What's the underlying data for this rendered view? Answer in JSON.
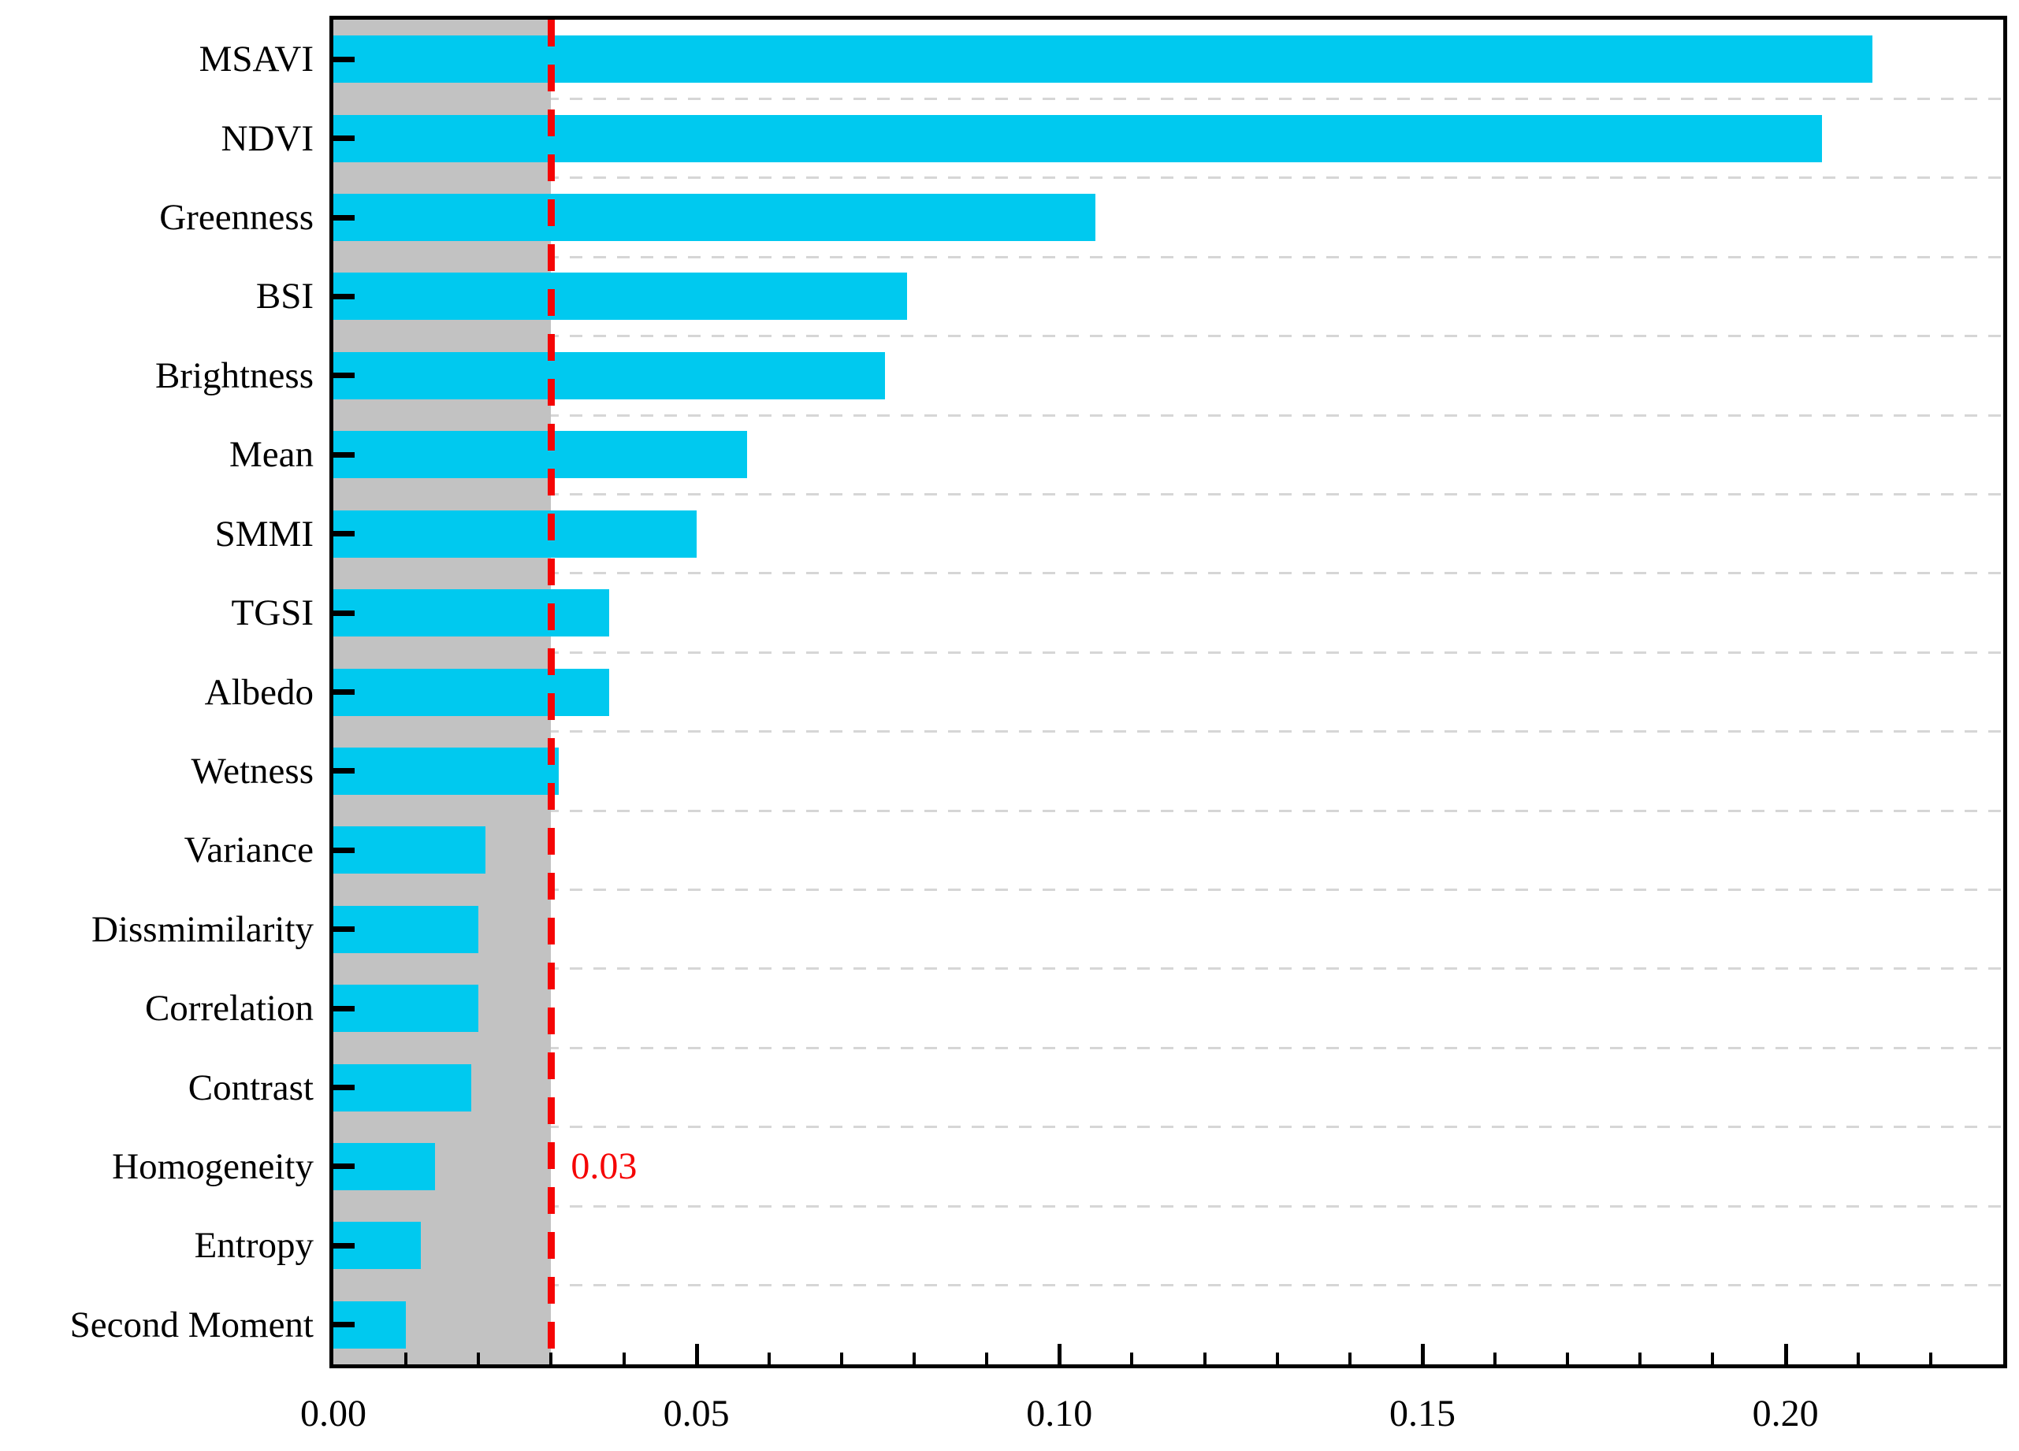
{
  "chart_data": {
    "type": "bar",
    "orientation": "horizontal",
    "title": "",
    "xlabel": "",
    "ylabel": "",
    "categories": [
      "MSAVI",
      "NDVI",
      "Greenness",
      "BSI",
      "Brightness",
      "Mean",
      "SMMI",
      "TGSI",
      "Albedo",
      "Wetness",
      "Variance",
      "Dissmimilarity",
      "Correlation",
      "Contrast",
      "Homogeneity",
      "Entropy",
      "Second Moment"
    ],
    "values": [
      0.212,
      0.205,
      0.105,
      0.079,
      0.076,
      0.057,
      0.05,
      0.038,
      0.038,
      0.031,
      0.021,
      0.02,
      0.02,
      0.019,
      0.014,
      0.012,
      0.01
    ],
    "xlim": [
      0,
      0.23
    ],
    "x_major_tick_values": [
      0.0,
      0.05,
      0.1,
      0.15,
      0.2
    ],
    "x_major_tick_labels": [
      "0.00",
      "0.05",
      "0.10",
      "0.15",
      "0.20"
    ],
    "x_minor_tick_step": 0.01,
    "threshold_value": 0.03,
    "threshold_label": "0.03",
    "shade_range": [
      0,
      0.03
    ],
    "grid": "dashed-horizontal-between-rows",
    "legend": "none",
    "colors": {
      "bar": "#00c9ef",
      "threshold_line": "#f50505",
      "threshold_text": "#f50505",
      "shade": "#c2c2c2",
      "gridline": "#d6d6d6",
      "axis": "#000000",
      "background": "#ffffff"
    }
  }
}
